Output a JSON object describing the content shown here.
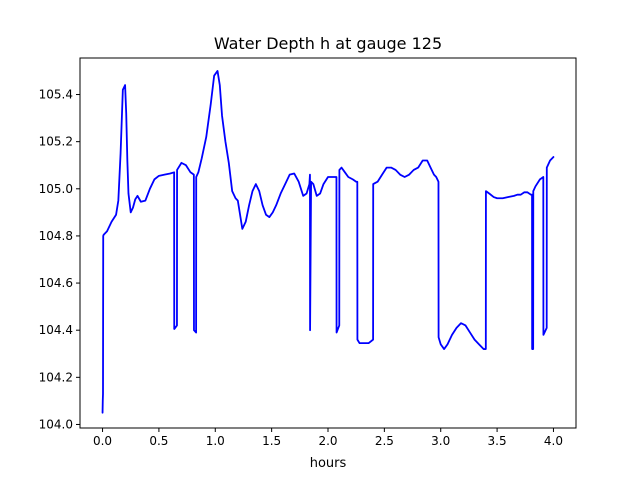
{
  "chart_data": {
    "type": "line",
    "title": "Water Depth h at gauge 125",
    "xlabel": "hours",
    "ylabel": "",
    "xlim": [
      -0.2,
      4.2
    ],
    "ylim": [
      103.985,
      105.555
    ],
    "xticks": [
      0.0,
      0.5,
      1.0,
      1.5,
      2.0,
      2.5,
      3.0,
      3.5,
      4.0
    ],
    "xtick_labels": [
      "0.0",
      "0.5",
      "1.0",
      "1.5",
      "2.0",
      "2.5",
      "3.0",
      "3.5",
      "4.0"
    ],
    "yticks": [
      104.0,
      104.2,
      104.4,
      104.6,
      104.8,
      105.0,
      105.2,
      105.4
    ],
    "ytick_labels": [
      "104.0",
      "104.2",
      "104.4",
      "104.6",
      "104.8",
      "105.0",
      "105.2",
      "105.4"
    ],
    "grid": false,
    "series": [
      {
        "name": "",
        "color": "#0000ff",
        "x": [
          0.0,
          0.002,
          0.004,
          0.006,
          0.01,
          0.04,
          0.08,
          0.12,
          0.14,
          0.16,
          0.18,
          0.2,
          0.21,
          0.22,
          0.23,
          0.25,
          0.27,
          0.29,
          0.31,
          0.34,
          0.38,
          0.42,
          0.46,
          0.5,
          0.55,
          0.6,
          0.635,
          0.636,
          0.66,
          0.661,
          0.7,
          0.74,
          0.78,
          0.81,
          0.811,
          0.83,
          0.831,
          0.85,
          0.88,
          0.92,
          0.96,
          0.99,
          1.02,
          1.04,
          1.06,
          1.09,
          1.12,
          1.15,
          1.18,
          1.2,
          1.21,
          1.24,
          1.27,
          1.3,
          1.33,
          1.36,
          1.39,
          1.42,
          1.45,
          1.48,
          1.51,
          1.54,
          1.58,
          1.62,
          1.66,
          1.7,
          1.74,
          1.78,
          1.81,
          1.835,
          1.84,
          1.841,
          1.85,
          1.87,
          1.9,
          1.93,
          1.96,
          2.0,
          2.03,
          2.06,
          2.075,
          2.076,
          2.1,
          2.101,
          2.12,
          2.15,
          2.18,
          2.22,
          2.25,
          2.26,
          2.261,
          2.28,
          2.32,
          2.36,
          2.4,
          2.401,
          2.44,
          2.48,
          2.52,
          2.56,
          2.6,
          2.64,
          2.68,
          2.72,
          2.76,
          2.8,
          2.84,
          2.88,
          2.91,
          2.94,
          2.96,
          2.98,
          2.981,
          3.0,
          3.03,
          3.06,
          3.1,
          3.14,
          3.18,
          3.22,
          3.26,
          3.3,
          3.34,
          3.38,
          3.4,
          3.401,
          3.43,
          3.47,
          3.5,
          3.55,
          3.6,
          3.65,
          3.68,
          3.71,
          3.74,
          3.77,
          3.8,
          3.81,
          3.811,
          3.82,
          3.821,
          3.84,
          3.88,
          3.91,
          3.911,
          3.94,
          3.941,
          3.97,
          4.0
        ],
        "y": [
          104.05,
          104.1,
          104.13,
          104.8,
          104.805,
          104.82,
          104.86,
          104.89,
          104.95,
          105.15,
          105.42,
          105.44,
          105.32,
          105.12,
          104.98,
          104.9,
          104.92,
          104.955,
          104.97,
          104.945,
          104.95,
          105.0,
          105.04,
          105.055,
          105.06,
          105.065,
          105.07,
          104.405,
          104.42,
          105.08,
          105.11,
          105.1,
          105.07,
          105.06,
          104.4,
          104.39,
          105.05,
          105.07,
          105.13,
          105.22,
          105.36,
          105.48,
          105.5,
          105.44,
          105.31,
          105.2,
          105.11,
          104.99,
          104.96,
          104.95,
          104.92,
          104.83,
          104.86,
          104.93,
          104.99,
          105.02,
          104.99,
          104.93,
          104.89,
          104.88,
          104.9,
          104.93,
          104.98,
          105.02,
          105.06,
          105.065,
          105.03,
          104.97,
          104.98,
          105.02,
          105.06,
          104.4,
          105.03,
          105.02,
          104.97,
          104.98,
          105.02,
          105.05,
          105.05,
          105.05,
          105.05,
          104.39,
          104.42,
          105.08,
          105.09,
          105.07,
          105.05,
          105.04,
          105.03,
          105.03,
          104.36,
          104.345,
          104.345,
          104.345,
          104.36,
          105.02,
          105.03,
          105.06,
          105.09,
          105.09,
          105.08,
          105.06,
          105.05,
          105.06,
          105.08,
          105.09,
          105.12,
          105.12,
          105.09,
          105.06,
          105.05,
          105.03,
          104.37,
          104.34,
          104.32,
          104.34,
          104.38,
          104.41,
          104.43,
          104.42,
          104.39,
          104.36,
          104.34,
          104.32,
          104.32,
          104.99,
          104.98,
          104.965,
          104.96,
          104.96,
          104.965,
          104.97,
          104.975,
          104.975,
          104.985,
          104.985,
          104.975,
          104.975,
          104.32,
          104.32,
          104.99,
          105.01,
          105.04,
          105.05,
          104.38,
          104.41,
          105.09,
          105.12,
          105.135
        ]
      }
    ]
  }
}
